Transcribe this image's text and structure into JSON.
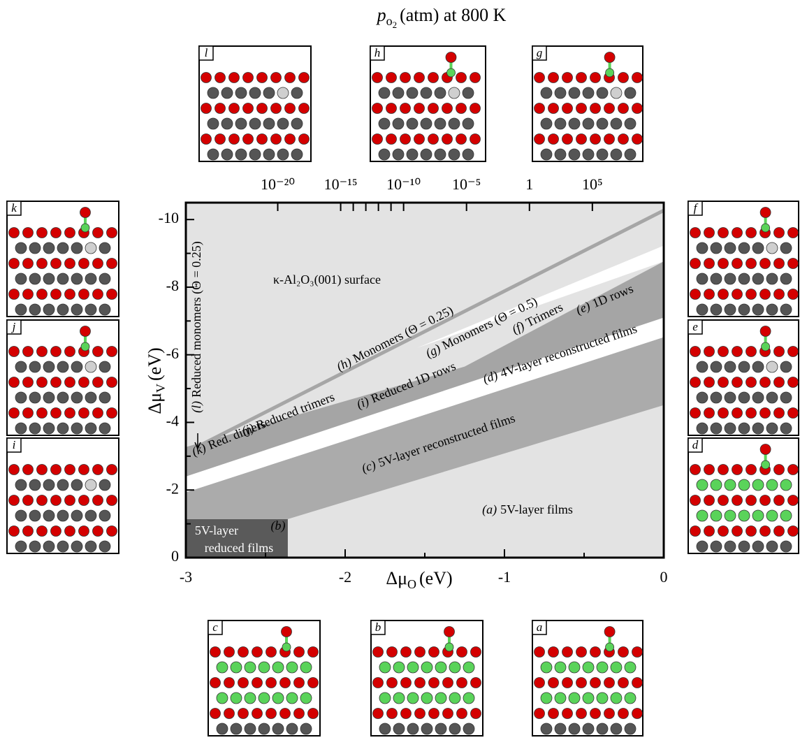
{
  "chart_data": {
    "type": "phase-diagram",
    "x2label": {
      "text": "p",
      "sub": "o",
      "subsub": "2",
      "rest": "(atm) at 800 K"
    },
    "xlabel": {
      "text": "Δμ",
      "sub": "O",
      "rest": "(eV)"
    },
    "ylabel": {
      "text": "Δμ",
      "sub": "V",
      "rest": "(eV)"
    },
    "xlim": [
      -3,
      0
    ],
    "xticks": [
      -3,
      -2,
      -1,
      0
    ],
    "xminorticks": [
      -2.5,
      -1.5,
      -0.5
    ],
    "ylim": [
      0,
      -10.5
    ],
    "yticks": [
      0,
      -2,
      -4,
      -6,
      -8,
      -10
    ],
    "yminorticks": [
      -1,
      -3,
      -5,
      -7,
      -9
    ],
    "x2scale": "log",
    "x2lim": [
      5e-28,
      47000000000.0
    ],
    "x2ticks": [
      {
        "value": 1e-20,
        "label": "10⁻²⁰"
      },
      {
        "value": 1e-15,
        "label": "10⁻¹⁵"
      },
      {
        "value": 1e-10,
        "label": "10⁻¹⁰"
      },
      {
        "value": 1e-05,
        "label": "10⁻⁵"
      },
      1,
      {
        "value": 100000,
        "label": "10⁵"
      }
    ],
    "x2minorticks": [
      1e-14,
      1e-13,
      1e-12,
      1e-11
    ],
    "regions": [
      {
        "color": "#e3e3e3",
        "x": [
          -3,
          0,
          0,
          -3
        ],
        "y": [
          0,
          0,
          -10.5,
          -10.5
        ]
      },
      {
        "color": "#5a5a5a",
        "x": [
          -3,
          -2.36,
          -2.36,
          -3
        ],
        "y": [
          0,
          0,
          -1.14,
          -1.14
        ]
      },
      {
        "color": "#ababab",
        "x": [
          -3,
          -2.36,
          0,
          0,
          -3
        ],
        "y": [
          -1.14,
          -1.14,
          -4.51,
          -6.52,
          -1.93
        ]
      },
      {
        "color": "#ffffff",
        "x": [
          -3,
          0,
          0,
          -3
        ],
        "y": [
          -1.93,
          -6.52,
          -7.1,
          -2.4
        ]
      },
      {
        "color": "#a5a5a5",
        "x": [
          -3,
          -1.25,
          -1.25,
          -3
        ],
        "y": [
          -2.4,
          -5.14,
          -5.65,
          -3.27
        ]
      },
      {
        "color": "#a5a5a5",
        "x": [
          -1.25,
          0,
          0,
          -1.25
        ],
        "y": [
          -5.14,
          -7.1,
          -8.76,
          -5.65
        ]
      },
      {
        "color": "#ffffff",
        "x": [
          -1.55,
          0,
          0
        ],
        "y": [
          -6.2,
          -8.76,
          -9.23
        ]
      }
    ],
    "lines": [
      {
        "color": "#a6a6a6",
        "x": [
          -3,
          0
        ],
        "y": [
          -3.11,
          -10.27
        ]
      }
    ],
    "annotations": [
      {
        "text": "κ-Al₂O₃(001) surface"
      },
      {
        "tag": "(l)",
        "text": "Reduced monomers (Θ = 0.25)"
      },
      {
        "tag": "(h)",
        "text": "Monomers (Θ = 0.25)"
      },
      {
        "tag": "(g)",
        "text": "Monomers (Θ = 0.5)"
      },
      {
        "tag": "(f)",
        "text": "Trimers"
      },
      {
        "tag": "(e)",
        "text": "1D rows"
      },
      {
        "tag": "(d)",
        "text": "4V-layer reconstructed films"
      },
      {
        "tag": "(i)",
        "text": "Reduced 1D rows"
      },
      {
        "tag": "(j)",
        "text": "Reduced trimers"
      },
      {
        "tag": "(k)",
        "text": "Red. dimers"
      },
      {
        "tag": "(c)",
        "text": "5V-layer reconstructed films"
      },
      {
        "tag": "(a)",
        "text": "5V-layer films"
      },
      {
        "tag": "(b)"
      },
      {
        "text": "5V-layer"
      },
      {
        "text": "reduced films"
      }
    ],
    "insets": [
      "l",
      "h",
      "g",
      "k",
      "j",
      "i",
      "f",
      "e",
      "d",
      "c",
      "b",
      "a"
    ]
  }
}
